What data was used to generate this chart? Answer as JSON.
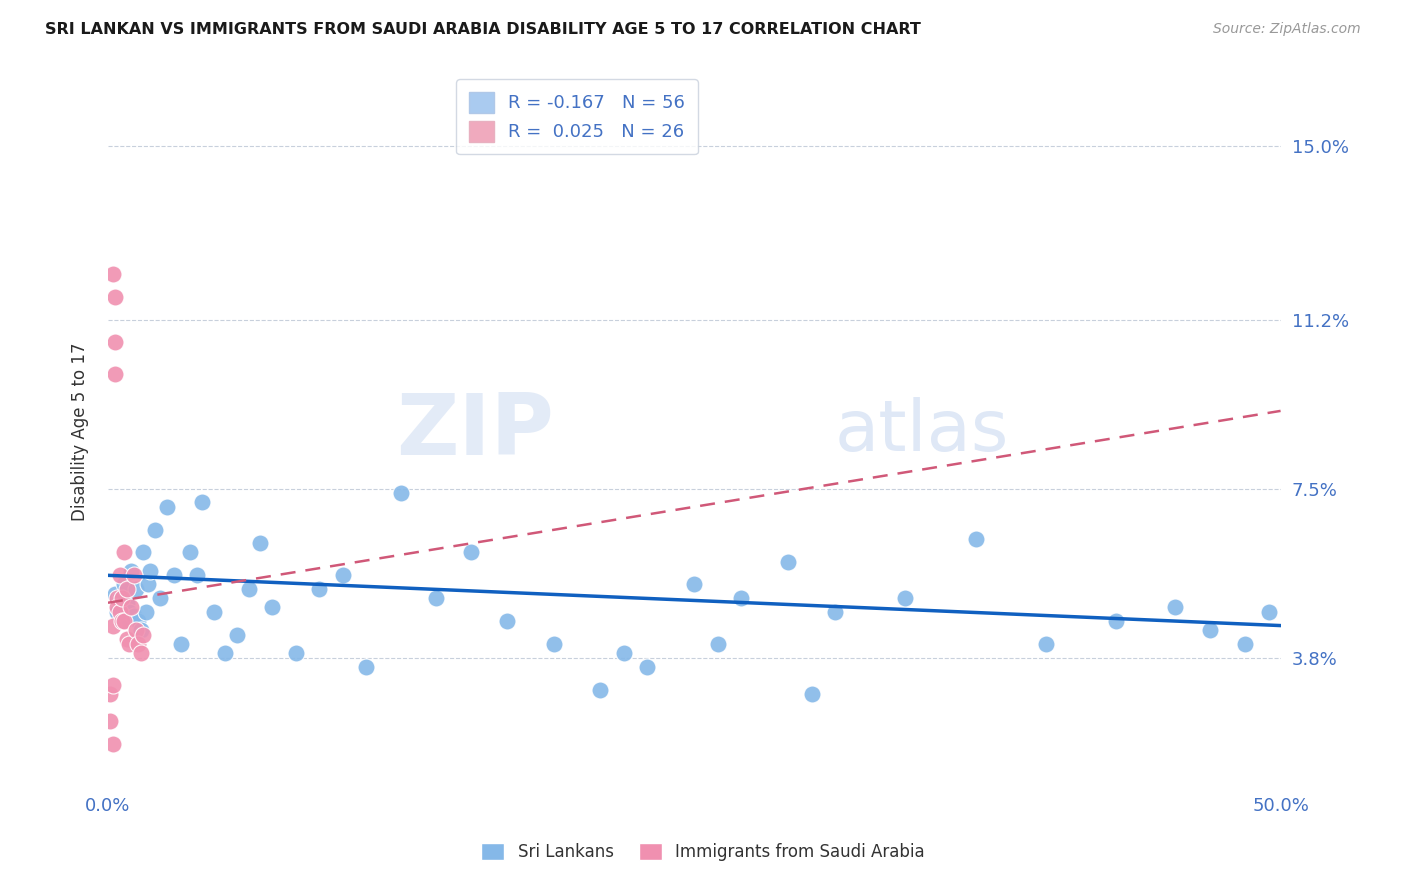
{
  "title": "SRI LANKAN VS IMMIGRANTS FROM SAUDI ARABIA DISABILITY AGE 5 TO 17 CORRELATION CHART",
  "source": "Source: ZipAtlas.com",
  "ylabel": "Disability Age 5 to 17",
  "ytick_labels": [
    "3.8%",
    "7.5%",
    "11.2%",
    "15.0%"
  ],
  "ytick_values": [
    0.038,
    0.075,
    0.112,
    0.15
  ],
  "xmin": 0.0,
  "xmax": 0.5,
  "ymin": 0.01,
  "ymax": 0.165,
  "legend_r1_label": "R = -0.167   N = 56",
  "legend_r2_label": "R =  0.025   N = 26",
  "legend_r1_color": "#aacbf0",
  "legend_r2_color": "#f0aabe",
  "sri_lankan_color": "#85b8e8",
  "saudi_color": "#f090b0",
  "sri_lankan_line_color": "#1060c0",
  "saudi_line_color": "#d05878",
  "watermark": "ZIPatlas",
  "sl_trend_x0": 0.0,
  "sl_trend_x1": 0.5,
  "sl_trend_y0": 0.056,
  "sl_trend_y1": 0.045,
  "sa_trend_x0": 0.0,
  "sa_trend_x1": 0.5,
  "sa_trend_y0": 0.05,
  "sa_trend_y1": 0.092,
  "sri_lankan_x": [
    0.003,
    0.004,
    0.005,
    0.006,
    0.007,
    0.008,
    0.009,
    0.01,
    0.011,
    0.012,
    0.013,
    0.014,
    0.015,
    0.016,
    0.017,
    0.018,
    0.02,
    0.022,
    0.025,
    0.028,
    0.031,
    0.035,
    0.038,
    0.04,
    0.045,
    0.05,
    0.055,
    0.06,
    0.065,
    0.07,
    0.08,
    0.09,
    0.1,
    0.11,
    0.125,
    0.14,
    0.155,
    0.17,
    0.19,
    0.21,
    0.23,
    0.25,
    0.27,
    0.29,
    0.31,
    0.34,
    0.37,
    0.4,
    0.43,
    0.455,
    0.47,
    0.485,
    0.495,
    0.22,
    0.26,
    0.3
  ],
  "sri_lankan_y": [
    0.052,
    0.048,
    0.051,
    0.046,
    0.054,
    0.05,
    0.048,
    0.057,
    0.047,
    0.053,
    0.046,
    0.044,
    0.061,
    0.048,
    0.054,
    0.057,
    0.066,
    0.051,
    0.071,
    0.056,
    0.041,
    0.061,
    0.056,
    0.072,
    0.048,
    0.039,
    0.043,
    0.053,
    0.063,
    0.049,
    0.039,
    0.053,
    0.056,
    0.036,
    0.074,
    0.051,
    0.061,
    0.046,
    0.041,
    0.031,
    0.036,
    0.054,
    0.051,
    0.059,
    0.048,
    0.051,
    0.064,
    0.041,
    0.046,
    0.049,
    0.044,
    0.041,
    0.048,
    0.039,
    0.041,
    0.03
  ],
  "saudi_x": [
    0.001,
    0.002,
    0.002,
    0.003,
    0.003,
    0.004,
    0.004,
    0.005,
    0.005,
    0.006,
    0.006,
    0.007,
    0.007,
    0.008,
    0.008,
    0.009,
    0.01,
    0.011,
    0.012,
    0.013,
    0.014,
    0.015,
    0.002,
    0.003,
    0.001,
    0.002
  ],
  "saudi_y": [
    0.03,
    0.032,
    0.045,
    0.1,
    0.107,
    0.051,
    0.049,
    0.056,
    0.048,
    0.051,
    0.046,
    0.061,
    0.046,
    0.053,
    0.042,
    0.041,
    0.049,
    0.056,
    0.044,
    0.041,
    0.039,
    0.043,
    0.122,
    0.117,
    0.024,
    0.019
  ],
  "xtick_vals": [
    0.0,
    0.1,
    0.2,
    0.3,
    0.4,
    0.5
  ],
  "xtick_labels": [
    "0.0%",
    "",
    "",
    "",
    "",
    "50.0%"
  ],
  "bottom_legend": [
    {
      "label": "Sri Lankans",
      "color": "#85b8e8"
    },
    {
      "label": "Immigrants from Saudi Arabia",
      "color": "#f090b0"
    }
  ]
}
